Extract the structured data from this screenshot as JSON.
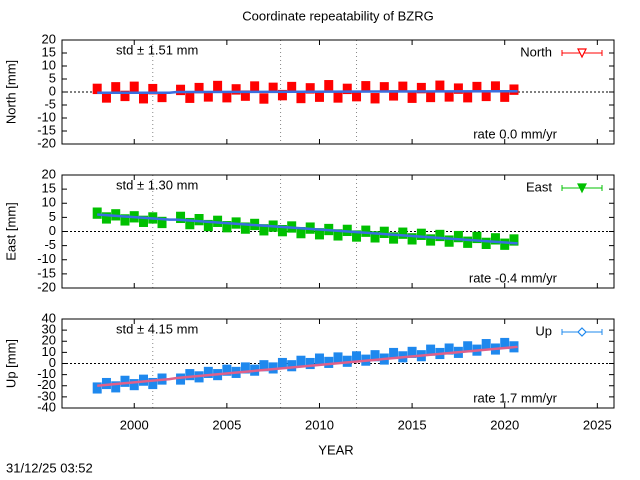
{
  "chart_data": {
    "type": "errorbar",
    "title": "Coordinate repeatability of BZRG",
    "x_label": "YEAR",
    "timestamp": "31/12/25 03:52",
    "xlim": [
      1996.1,
      2025.9
    ],
    "xticks": [
      2000,
      2005,
      2010,
      2015,
      2020,
      2025
    ],
    "vlines": [
      2001.0,
      2007.9,
      2012.0
    ],
    "x": [
      1998.0,
      1998.5,
      1999.0,
      1999.5,
      2000.0,
      2000.5,
      2001.0,
      2001.5,
      2002.5,
      2003.0,
      2003.5,
      2004.0,
      2004.5,
      2005.0,
      2005.5,
      2006.0,
      2006.5,
      2007.0,
      2007.5,
      2008.0,
      2008.5,
      2009.0,
      2009.5,
      2010.0,
      2010.5,
      2011.0,
      2011.5,
      2012.0,
      2012.5,
      2013.0,
      2013.5,
      2014.0,
      2014.5,
      2015.0,
      2015.5,
      2016.0,
      2016.5,
      2017.0,
      2017.5,
      2018.0,
      2018.5,
      2019.0,
      2019.5,
      2020.0,
      2020.5
    ],
    "panels": [
      {
        "name": "North",
        "y_label": "North [mm]",
        "color": "#ff0000",
        "marker": "triangle-down-open",
        "std": "std ± 1.51 mm",
        "rate": "rate  0.0 mm/yr",
        "error": 2,
        "ylim": [
          -20,
          20
        ],
        "yticks": [
          20,
          15,
          10,
          5,
          0,
          -5,
          -10,
          -15,
          -20
        ],
        "values": [
          1.2,
          -2.1,
          1.8,
          -1.5,
          2.0,
          -2.4,
          1.1,
          -1.9,
          0.8,
          -2.2,
          1.5,
          -1.7,
          2.3,
          -2.0,
          1.0,
          -1.4,
          2.1,
          -2.5,
          1.6,
          -1.2,
          1.9,
          -2.3,
          1.4,
          -1.8,
          2.6,
          -2.1,
          1.2,
          -1.6,
          2.2,
          -2.4,
          1.8,
          -1.3,
          2.0,
          -2.2,
          1.5,
          -1.9,
          2.4,
          -1.7,
          1.3,
          -2.0,
          1.9,
          -1.5,
          2.1,
          -1.8,
          0.9
        ],
        "fit": {
          "color": "#3a6ee0",
          "x": [
            1998.0,
            2001.9,
            2002.3,
            2020.7
          ],
          "values": [
            -0.3,
            -0.3,
            0.0,
            0.3
          ]
        }
      },
      {
        "name": "East",
        "y_label": "East [mm]",
        "color": "#00c000",
        "marker": "triangle-down-filled",
        "std": "std ± 1.30 mm",
        "rate": "rate -0.4 mm/yr",
        "error": 2,
        "ylim": [
          -20,
          20
        ],
        "yticks": [
          20,
          15,
          10,
          5,
          0,
          -5,
          -10,
          -15,
          -20
        ],
        "values": [
          6.5,
          4.8,
          5.9,
          4.1,
          5.2,
          3.6,
          4.8,
          3.2,
          5.0,
          2.8,
          4.2,
          2.1,
          3.6,
          1.7,
          3.0,
          1.2,
          2.5,
          0.6,
          1.9,
          0.3,
          1.6,
          -0.4,
          1.2,
          -0.8,
          0.7,
          -1.2,
          0.4,
          -1.6,
          0.1,
          -1.9,
          -0.3,
          -2.3,
          -0.6,
          -2.6,
          -1.0,
          -3.0,
          -1.4,
          -3.4,
          -1.8,
          -3.8,
          -2.1,
          -4.2,
          -2.6,
          -4.5,
          -3.0
        ],
        "fit": {
          "color": "#3a6ee0",
          "x": [
            1998.0,
            2001.9,
            2002.3,
            2020.7
          ],
          "values": [
            6.0,
            4.2,
            4.2,
            -4.2
          ]
        }
      },
      {
        "name": "Up",
        "y_label": "Up [mm]",
        "color": "#1e88ee",
        "marker": "diamond-open",
        "std": "std ± 4.15 mm",
        "rate": "rate  1.7 mm/yr",
        "error": 5,
        "ylim": [
          -40,
          40
        ],
        "yticks": [
          40,
          30,
          20,
          10,
          0,
          -10,
          -20,
          -30,
          -40
        ],
        "values": [
          -22,
          -18,
          -21,
          -16,
          -19,
          -15,
          -18,
          -14,
          -14,
          -10,
          -12,
          -8,
          -10,
          -6,
          -8,
          -4,
          -6,
          -2,
          -4,
          0,
          -2,
          2,
          0,
          4,
          1,
          5,
          2,
          6,
          3,
          7,
          4,
          9,
          6,
          10,
          7,
          12,
          9,
          13,
          10,
          15,
          12,
          17,
          13,
          18,
          15
        ],
        "fit": {
          "color": "#e0608a",
          "x": [
            1998.0,
            2001.9,
            2002.3,
            2020.7
          ],
          "values": [
            -20,
            -14,
            -13,
            15
          ]
        }
      }
    ]
  }
}
